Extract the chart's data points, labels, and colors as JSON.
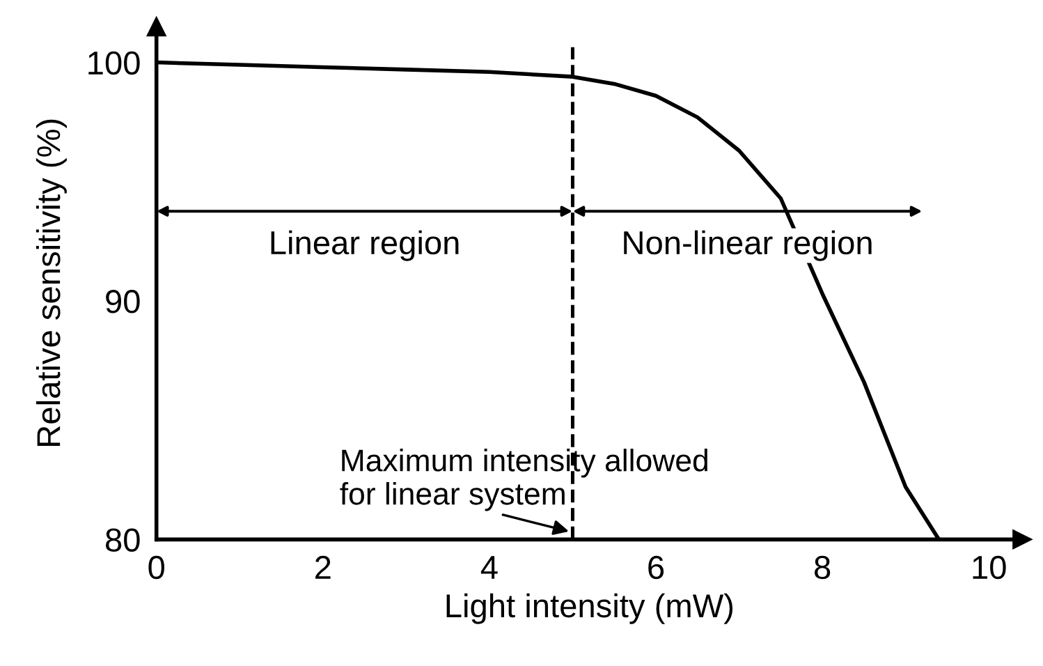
{
  "chart_data": {
    "type": "line",
    "xlabel": "Light intensity (mW)",
    "ylabel": "Relative sensitivity (%)",
    "x": [
      0,
      1,
      2,
      3,
      4,
      5,
      5.5,
      6,
      6.5,
      7,
      7.5,
      8,
      8.5,
      9,
      9.4
    ],
    "series": [
      {
        "color": "#000000",
        "values": [
          100,
          99.9,
          99.8,
          99.7,
          99.6,
          99.4,
          99.1,
          98.6,
          97.7,
          96.3,
          94.3,
          90.3,
          86.6,
          82.2,
          80
        ]
      }
    ],
    "xlim": [
      0,
      10.4
    ],
    "ylim": [
      80,
      101.5
    ],
    "xticks": [
      0,
      2,
      4,
      6,
      8,
      10
    ],
    "yticks": [
      80,
      90,
      100
    ],
    "grid": false,
    "legend": false,
    "marker": "none",
    "line_style": "solid",
    "ref_lines": [
      {
        "axis": "x",
        "value": 5,
        "color": "#000000",
        "line_style": "dashed"
      }
    ],
    "annotations": [
      "Linear region",
      "Non-linear region",
      {
        "text": "Maximum intensity allowed\nfor linear system",
        "x": 5,
        "y": 80.3
      }
    ]
  }
}
